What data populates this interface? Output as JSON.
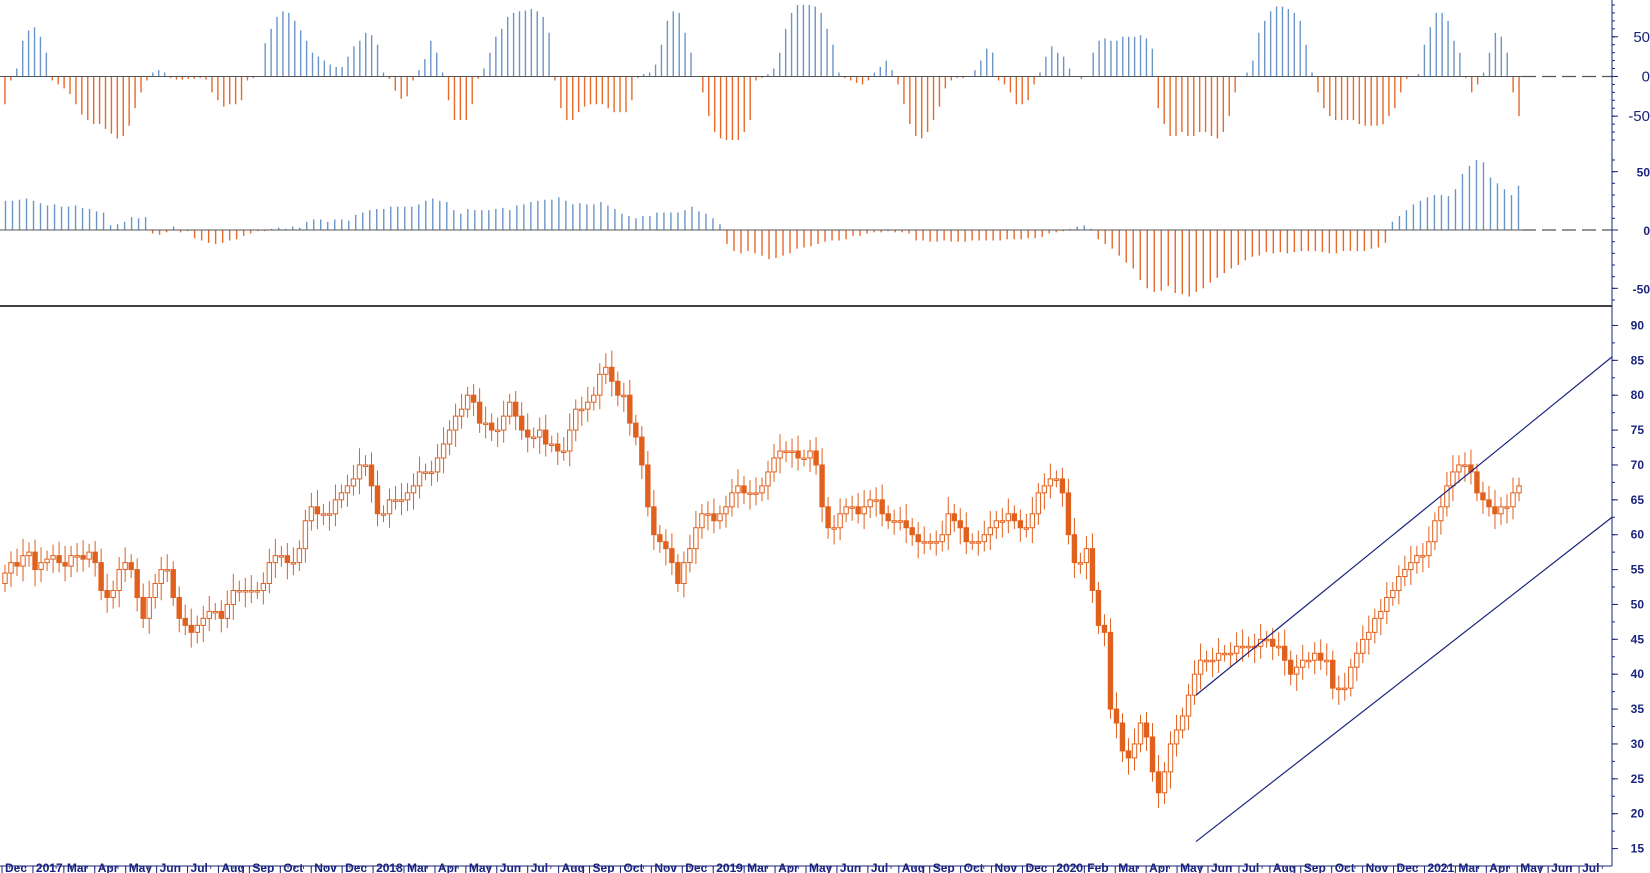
{
  "colors": {
    "up": "#6b94c8",
    "down": "#e8692a",
    "candle": "#e0601e",
    "channel": "#1a237e",
    "axis": "#1a237e",
    "divider": "#000000",
    "zero_line": "#555555"
  },
  "chart_data": [
    {
      "type": "bar",
      "panel": "oscillator-1",
      "y_ticks": [
        "50",
        "0",
        "-50"
      ],
      "ylim": [
        -80,
        90
      ],
      "values": [
        -35,
        -5,
        10,
        45,
        58,
        62,
        50,
        30,
        -5,
        -10,
        -15,
        -22,
        -35,
        -48,
        -55,
        -60,
        -60,
        -66,
        -72,
        -78,
        -75,
        -62,
        -40,
        -20,
        -5,
        5,
        8,
        5,
        -2,
        -4,
        -4,
        -3,
        -3,
        -2,
        -4,
        -20,
        -30,
        -38,
        -35,
        -35,
        -30,
        -5,
        -2,
        0,
        42,
        60,
        75,
        82,
        80,
        70,
        58,
        45,
        30,
        25,
        20,
        15,
        12,
        12,
        25,
        38,
        45,
        55,
        52,
        40,
        5,
        -3,
        -18,
        -28,
        -25,
        -5,
        8,
        22,
        45,
        30,
        5,
        -30,
        -55,
        -55,
        -55,
        -35,
        -3,
        10,
        30,
        50,
        60,
        75,
        80,
        82,
        83,
        85,
        82,
        75,
        55,
        -5,
        -40,
        -55,
        -55,
        -45,
        -38,
        -35,
        -35,
        -35,
        -40,
        -45,
        -45,
        -45,
        -30,
        -2,
        3,
        5,
        15,
        40,
        70,
        82,
        80,
        55,
        30,
        0,
        -20,
        -50,
        -70,
        -78,
        -80,
        -80,
        -80,
        -70,
        -55,
        -5,
        -2,
        3,
        10,
        30,
        60,
        80,
        90,
        90,
        90,
        88,
        80,
        60,
        40,
        5,
        -2,
        -5,
        -8,
        -10,
        -5,
        5,
        12,
        20,
        8,
        -10,
        -35,
        -60,
        -75,
        -78,
        -70,
        -55,
        -38,
        -15,
        -5,
        -2,
        -2,
        0,
        8,
        20,
        35,
        30,
        -5,
        -10,
        -20,
        -35,
        -35,
        -30,
        -10,
        5,
        25,
        38,
        30,
        25,
        10,
        0,
        -3,
        0,
        30,
        45,
        48,
        45,
        45,
        50,
        50,
        50,
        52,
        48,
        35,
        -40,
        -60,
        -75,
        -75,
        -70,
        -75,
        -75,
        -70,
        -70,
        -75,
        -78,
        -70,
        -50,
        -20,
        0,
        5,
        20,
        55,
        70,
        82,
        88,
        88,
        85,
        80,
        70,
        40,
        5,
        -20,
        -40,
        -50,
        -55,
        -55,
        -55,
        -55,
        -60,
        -62,
        -62,
        -62,
        -60,
        -50,
        -40,
        -20,
        -3,
        0,
        3,
        40,
        62,
        80,
        80,
        70,
        45,
        30,
        -2,
        -20,
        -10,
        5,
        30,
        55,
        50,
        30,
        -20,
        -50
      ]
    },
    {
      "type": "bar",
      "panel": "oscillator-2",
      "y_ticks": [
        "50",
        "0",
        "-50"
      ],
      "ylim": [
        -60,
        60
      ],
      "values": [
        25,
        25,
        26,
        27,
        25,
        23,
        21,
        22,
        20,
        20,
        21,
        19,
        18,
        16,
        15,
        4,
        5,
        7,
        11,
        10,
        11,
        -3,
        -4,
        -2,
        3,
        -2,
        -1,
        -7,
        -9,
        -11,
        -12,
        -11,
        -9,
        -8,
        -5,
        -3,
        -1,
        -1,
        1,
        2,
        1,
        3,
        2,
        7,
        9,
        9,
        7,
        9,
        9,
        8,
        13,
        15,
        17,
        18,
        18,
        20,
        20,
        20,
        20,
        22,
        25,
        27,
        25,
        24,
        17,
        14,
        18,
        17,
        17,
        17,
        18,
        19,
        17,
        21,
        22,
        24,
        25,
        26,
        26,
        28,
        25,
        22,
        23,
        22,
        22,
        24,
        21,
        18,
        14,
        12,
        10,
        12,
        12,
        15,
        15,
        15,
        15,
        17,
        20,
        16,
        14,
        10,
        5,
        -12,
        -18,
        -20,
        -18,
        -20,
        -22,
        -25,
        -24,
        -22,
        -20,
        -16,
        -15,
        -14,
        -12,
        -10,
        -9,
        -9,
        -8,
        -5,
        -5,
        -3,
        -2,
        -2,
        -1,
        -2,
        -2,
        -3,
        -9,
        -9,
        -10,
        -10,
        -9,
        -10,
        -10,
        -10,
        -9,
        -9,
        -9,
        -9,
        -9,
        -8,
        -8,
        -8,
        -7,
        -7,
        -6,
        -3,
        -2,
        -1,
        1,
        3,
        4,
        1,
        -8,
        -12,
        -16,
        -22,
        -28,
        -33,
        -43,
        -50,
        -53,
        -52,
        -48,
        -54,
        -55,
        -57,
        -53,
        -50,
        -45,
        -41,
        -37,
        -33,
        -30,
        -26,
        -23,
        -22,
        -19,
        -20,
        -19,
        -20,
        -19,
        -18,
        -18,
        -18,
        -19,
        -20,
        -20,
        -18,
        -18,
        -18,
        -18,
        -16,
        -15,
        -11,
        7,
        12,
        17,
        22,
        25,
        28,
        30,
        30,
        29,
        35,
        48,
        55,
        60,
        58,
        45,
        40,
        35,
        30,
        38
      ]
    },
    {
      "type": "candlestick",
      "panel": "price",
      "y_ticks": [
        "90",
        "85",
        "80",
        "75",
        "70",
        "65",
        "60",
        "55",
        "50",
        "45",
        "40",
        "35",
        "30",
        "25",
        "20",
        "15"
      ],
      "ylim": [
        12.5,
        91.5
      ],
      "closes": [
        54.5,
        56,
        55.5,
        57,
        57.5,
        55,
        56,
        56.5,
        57,
        56,
        55.5,
        57,
        57,
        56.5,
        57.5,
        56,
        52,
        51,
        52,
        55,
        56,
        55,
        51,
        48,
        51,
        53,
        55,
        55,
        51,
        48,
        47,
        46,
        47,
        48,
        49,
        49,
        48,
        50,
        52,
        52,
        52,
        52,
        52,
        53,
        56,
        57,
        57,
        56,
        56,
        58,
        62,
        64,
        63,
        63,
        63,
        65,
        66,
        67,
        68,
        70,
        70,
        67,
        63,
        63,
        65,
        65,
        65,
        66,
        67,
        69,
        69,
        69,
        71,
        73,
        75,
        77,
        78,
        80,
        79,
        76,
        76,
        75,
        75,
        77,
        79,
        77,
        75,
        74,
        74,
        75,
        73,
        73,
        72,
        72,
        75,
        78,
        78,
        79,
        80,
        83,
        84,
        82,
        80,
        80,
        76,
        74,
        70,
        64,
        60,
        59,
        58,
        56,
        53,
        56,
        58,
        61,
        63,
        63,
        62,
        63,
        64,
        66,
        67,
        66,
        66,
        66,
        67,
        69,
        71,
        72,
        72,
        72,
        71,
        71,
        72,
        70,
        64,
        61,
        61,
        63,
        64,
        64,
        63,
        64,
        65,
        65,
        63,
        62,
        62,
        62,
        61,
        60,
        59,
        59,
        59,
        59,
        60,
        63,
        62,
        61,
        59,
        59,
        59,
        60,
        61,
        62,
        62,
        63,
        62,
        61,
        61,
        63,
        66,
        67,
        68,
        68,
        66,
        60,
        56,
        56,
        58,
        52,
        47,
        46,
        35,
        33,
        29,
        28,
        30,
        33,
        31,
        26,
        23,
        26,
        30,
        32,
        34,
        37,
        40,
        42,
        42,
        42,
        43,
        43,
        43,
        44,
        44,
        44,
        44,
        45,
        45,
        44,
        44,
        42,
        40,
        41,
        42,
        42,
        43,
        42,
        42,
        38,
        38,
        38,
        41,
        43,
        45,
        46,
        48,
        49,
        51,
        52,
        54,
        55,
        56,
        57,
        57,
        59,
        62,
        64,
        67,
        69,
        70,
        70,
        69,
        66,
        65,
        64,
        63,
        64,
        64,
        66,
        67
      ],
      "channel": {
        "start_date": "Apr 2020",
        "end_date": "Jul 2021",
        "upper": [
          37,
          85.5
        ],
        "lower": [
          16,
          62.5
        ]
      }
    }
  ],
  "x_axis": {
    "labels": [
      "Dec",
      "2017",
      "Mar",
      "Apr",
      "May",
      "Jun",
      "Jul",
      "Aug",
      "Sep",
      "Oct",
      "Nov",
      "Dec",
      "2018",
      "Mar",
      "Apr",
      "May",
      "Jun",
      "Jul",
      "Aug",
      "Sep",
      "Oct",
      "Nov",
      "Dec",
      "2019",
      "Mar",
      "Apr",
      "May",
      "Jun",
      "Jul",
      "Aug",
      "Sep",
      "Oct",
      "Nov",
      "Dec",
      "2020",
      "Feb",
      "Mar",
      "Apr",
      "May",
      "Jun",
      "Jul",
      "Aug",
      "Sep",
      "Oct",
      "Nov",
      "Dec",
      "2021",
      "Mar",
      "Apr",
      "May",
      "Jun",
      "Jul"
    ]
  }
}
